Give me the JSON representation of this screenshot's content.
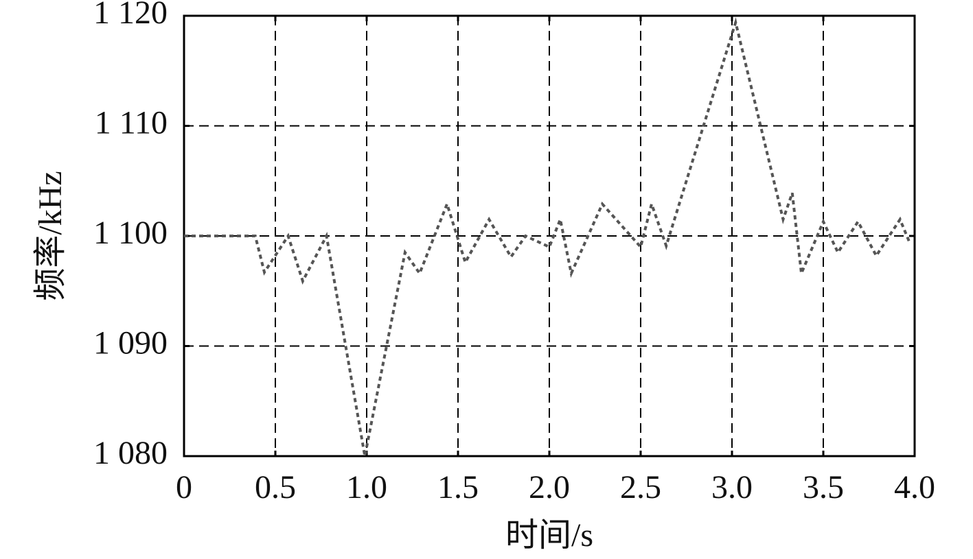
{
  "chart_data": {
    "type": "line",
    "x_label": "时间/s",
    "y_label": "频率/kHz",
    "x": [
      0,
      0.39,
      0.44,
      0.57,
      0.65,
      0.78,
      0.99,
      1.21,
      1.29,
      1.44,
      1.54,
      1.67,
      1.79,
      1.87,
      2.0,
      2.06,
      2.12,
      2.29,
      2.5,
      2.56,
      2.64,
      3.02,
      3.28,
      3.33,
      3.38,
      3.5,
      3.58,
      3.69,
      3.79,
      3.92,
      3.97
    ],
    "values": [
      1100,
      1100,
      1096.7,
      1100,
      1095.9,
      1100,
      1080,
      1098.5,
      1096.6,
      1102.9,
      1097.6,
      1101.5,
      1098.1,
      1100,
      1099,
      1101.5,
      1096.6,
      1102.9,
      1099,
      1102.9,
      1099.1,
      1119.4,
      1101.5,
      1103.9,
      1096.6,
      1101.3,
      1098.5,
      1101.3,
      1098.2,
      1101.5,
      1099.5
    ],
    "color": "#555555",
    "xlim": [
      0,
      4
    ],
    "xticks": [
      0,
      0.5,
      {
        "value": 1,
        "label": "1.0"
      },
      1.5,
      {
        "value": 2,
        "label": "2.0"
      },
      2.5,
      {
        "value": 3,
        "label": "3.0"
      },
      3.5,
      {
        "value": 4,
        "label": "4.0"
      }
    ],
    "ylim": [
      1080,
      1120
    ],
    "yticks": [
      {
        "value": 1080,
        "label": "1 080"
      },
      {
        "value": 1090,
        "label": "1 090"
      },
      {
        "value": 1100,
        "label": "1 100"
      },
      {
        "value": 1110,
        "label": "1 110"
      },
      {
        "value": 1120,
        "label": "1 120"
      }
    ],
    "grid": true
  }
}
